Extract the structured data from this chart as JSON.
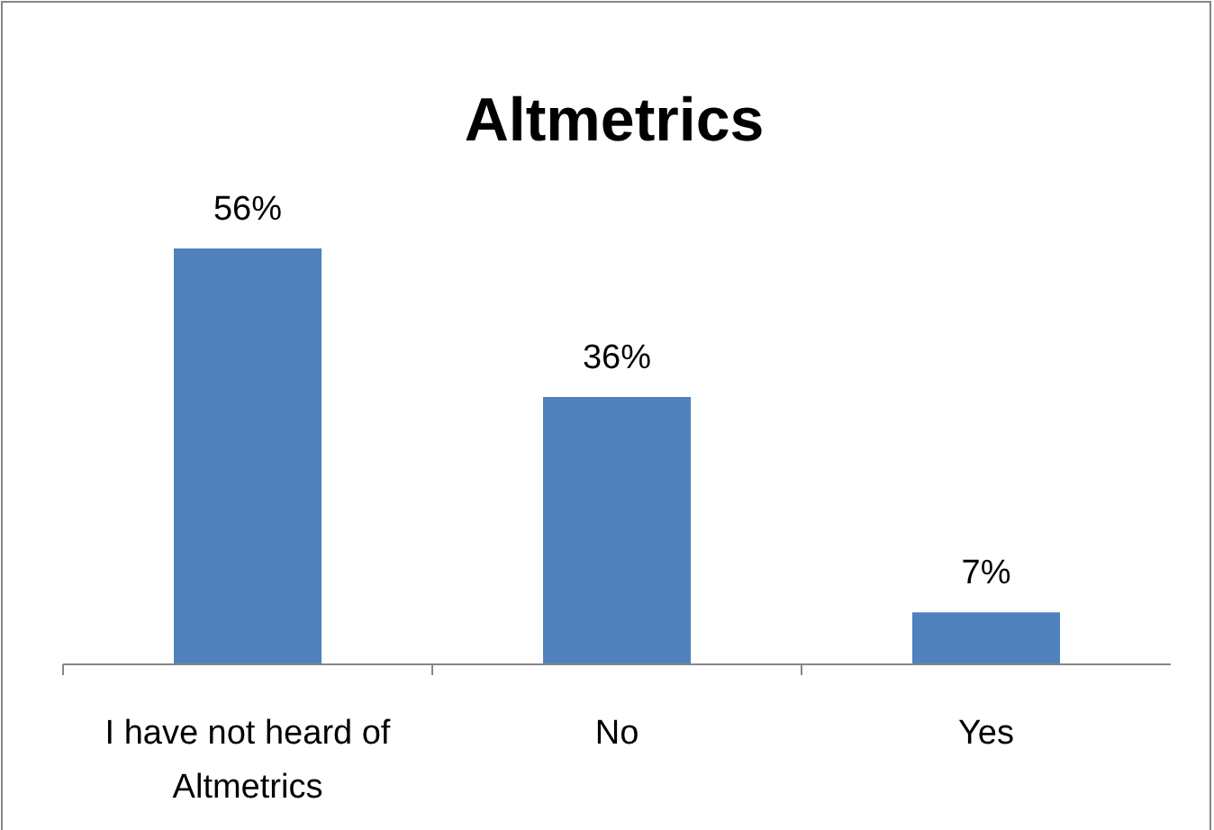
{
  "chart_data": {
    "type": "bar",
    "title": "Altmetrics",
    "categories": [
      "I have not heard of Altmetrics",
      "No",
      "Yes"
    ],
    "values": [
      56,
      36,
      7
    ],
    "value_labels": [
      "56%",
      "36%",
      "7%"
    ],
    "color": "#4f81bd"
  }
}
